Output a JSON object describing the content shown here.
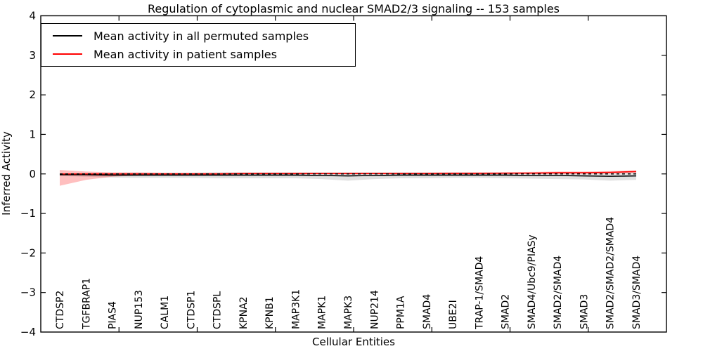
{
  "chart_data": {
    "type": "line",
    "title": "Regulation of cytoplasmic and nuclear SMAD2/3 signaling -- 153 samples",
    "xlabel": "Cellular Entities",
    "ylabel": "Inferred Activity",
    "ylim": [
      -4,
      4
    ],
    "yticks": [
      4,
      3,
      2,
      1,
      0,
      -1,
      -2,
      -3,
      -4
    ],
    "grid": false,
    "legend_position": "upper left",
    "frame": true,
    "tick_direction": "in",
    "categories": [
      "CTDSP2",
      "TGFBRAP1",
      "PIAS4",
      "NUP153",
      "CALM1",
      "CTDSP1",
      "CTDSPL",
      "KPNA2",
      "KPNB1",
      "MAP3K1",
      "MAPK1",
      "MAPK3",
      "NUP214",
      "PPM1A",
      "SMAD4",
      "UBE2I",
      "TRAP-1/SMAD4",
      "SMAD2",
      "SMAD4/Ubc9/PIASy",
      "SMAD2/SMAD4",
      "SMAD3",
      "SMAD2/SMAD2/SMAD4",
      "SMAD3/SMAD4"
    ],
    "zero_line": {
      "value": 0,
      "style": "dashed",
      "color": "#000000"
    },
    "series": [
      {
        "name": "Mean activity in all permuted samples",
        "color": "#000000",
        "style": "solid",
        "band_color": "rgba(120,120,120,0.22)",
        "values": [
          -0.02,
          -0.02,
          -0.03,
          -0.03,
          -0.03,
          -0.03,
          -0.03,
          -0.03,
          -0.03,
          -0.03,
          -0.04,
          -0.05,
          -0.04,
          -0.03,
          -0.03,
          -0.03,
          -0.03,
          -0.03,
          -0.04,
          -0.04,
          -0.05,
          -0.06,
          -0.05
        ],
        "band_upper": [
          0.01,
          0.02,
          0.02,
          0.03,
          0.03,
          0.03,
          0.04,
          0.04,
          0.04,
          0.04,
          0.04,
          0.04,
          0.04,
          0.04,
          0.04,
          0.04,
          0.04,
          0.04,
          0.04,
          0.04,
          0.04,
          0.04,
          0.05
        ],
        "band_lower": [
          -0.05,
          -0.07,
          -0.09,
          -0.1,
          -0.1,
          -0.1,
          -0.11,
          -0.11,
          -0.11,
          -0.11,
          -0.13,
          -0.17,
          -0.13,
          -0.11,
          -0.11,
          -0.1,
          -0.1,
          -0.11,
          -0.12,
          -0.13,
          -0.14,
          -0.17,
          -0.15
        ]
      },
      {
        "name": "Mean activity in patient samples",
        "color": "#ff0000",
        "style": "solid",
        "band_color": "rgba(255,0,0,0.25)",
        "values": [
          0.0,
          0.0,
          0.0,
          0.0,
          0.0,
          0.0,
          0.0,
          0.01,
          0.01,
          0.01,
          0.01,
          0.01,
          0.01,
          0.01,
          0.01,
          0.01,
          0.01,
          0.02,
          0.02,
          0.03,
          0.03,
          0.04,
          0.06
        ],
        "band_upper": [
          0.1,
          0.06,
          0.04,
          0.04,
          0.03,
          0.03,
          0.03,
          0.03,
          0.03,
          0.03,
          0.03,
          0.03,
          0.03,
          0.03,
          0.03,
          0.04,
          0.04,
          0.04,
          0.05,
          0.06,
          0.06,
          0.07,
          0.09
        ],
        "band_lower": [
          -0.3,
          -0.15,
          -0.07,
          -0.04,
          -0.03,
          -0.02,
          -0.02,
          -0.01,
          -0.01,
          -0.01,
          -0.01,
          -0.01,
          -0.01,
          -0.01,
          -0.01,
          -0.01,
          -0.01,
          0.0,
          0.0,
          0.0,
          0.01,
          0.01,
          0.03
        ]
      }
    ]
  }
}
